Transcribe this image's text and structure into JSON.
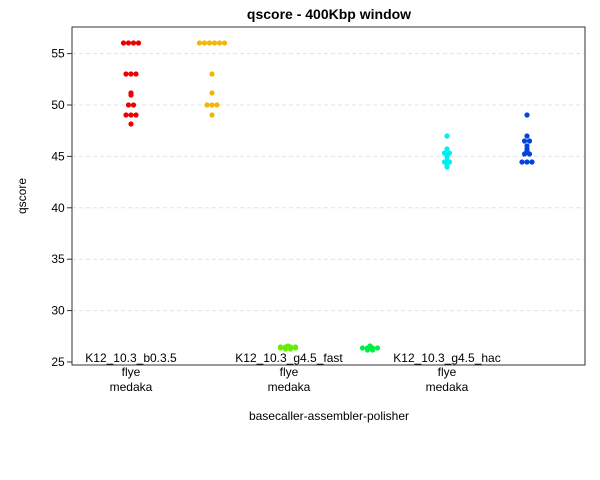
{
  "chart_data": {
    "type": "scatter",
    "title": "qscore - 400Kbp window",
    "xlabel": "basecaller-assembler-polisher",
    "ylabel": "qscore",
    "ylim": [
      25,
      57.5
    ],
    "yticks": [
      25,
      30,
      35,
      40,
      45,
      50,
      55
    ],
    "grid": "horizontal dashed",
    "legend": "none",
    "group_labels": [
      {
        "line1": "K12_10.3_b0.3.5",
        "line2": "flye",
        "line3": "medaka"
      },
      {
        "line1": "K12_10.3_g4.5_fast",
        "line2": "flye",
        "line3": "medaka"
      },
      {
        "line1": "K12_10.3_g4.5_hac",
        "line2": "flye",
        "line3": "medaka"
      }
    ],
    "series": [
      {
        "color": "#ee0000",
        "values": [
          56,
          56,
          56,
          56,
          53,
          53,
          53,
          51.2,
          51,
          50,
          50,
          49,
          49,
          49,
          48.2
        ]
      },
      {
        "color": "#f2b700",
        "values": [
          56,
          56,
          56,
          56,
          56,
          56,
          53,
          51.2,
          50,
          50,
          50,
          49
        ]
      },
      {
        "color": "#66ee00",
        "values": [
          26.6,
          26.5,
          26.5,
          26.4,
          26.4,
          26.3,
          26.3,
          26.4,
          26.4,
          26.5,
          26.5
        ]
      },
      {
        "color": "#00ee44",
        "values": [
          26.5,
          26.4,
          26.4,
          26.3,
          26.2,
          26.2,
          26.3,
          26.4,
          26.4,
          26.6
        ]
      },
      {
        "color": "#00eeee",
        "values": [
          47,
          45.7,
          45.3,
          45.3,
          45,
          44.9,
          44.5,
          44.5,
          44.3,
          44,
          44.6
        ]
      },
      {
        "color": "#0044dd",
        "values": [
          49,
          47,
          46.5,
          46.5,
          45.7,
          45.5,
          45.2,
          45.2,
          44.5,
          44.5,
          44.5,
          46
        ]
      }
    ]
  }
}
